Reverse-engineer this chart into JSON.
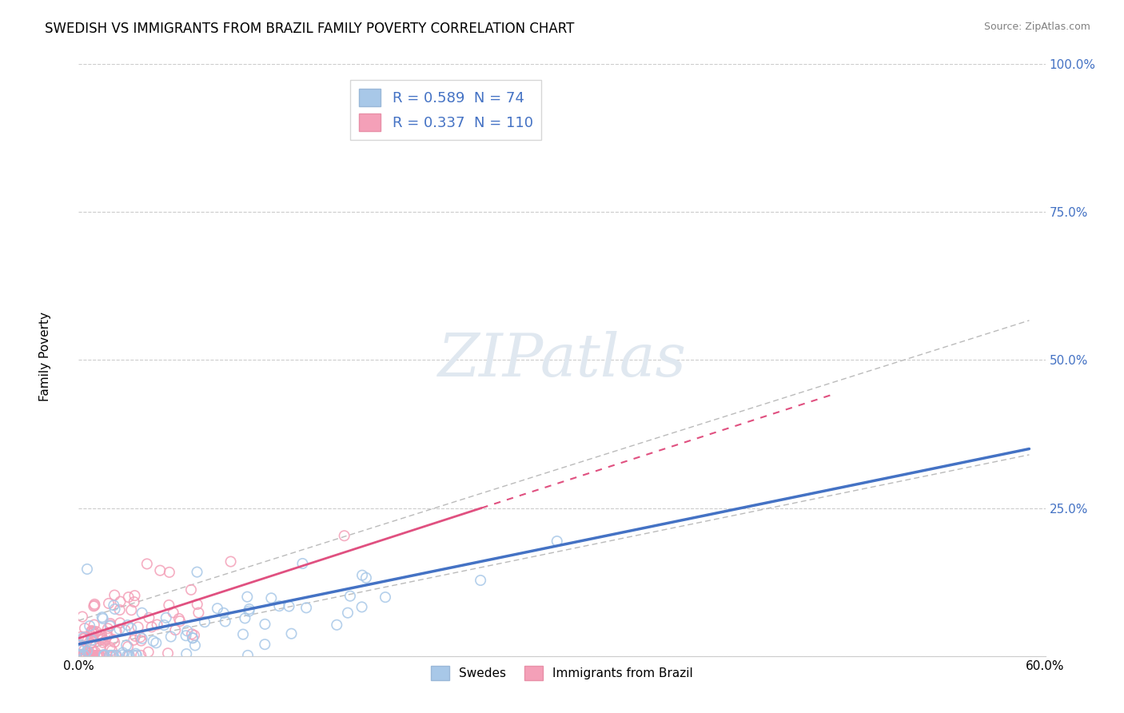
{
  "title": "SWEDISH VS IMMIGRANTS FROM BRAZIL FAMILY POVERTY CORRELATION CHART",
  "source": "Source: ZipAtlas.com",
  "ylabel": "Family Poverty",
  "xlim": [
    0.0,
    0.6
  ],
  "ylim": [
    0.0,
    1.0
  ],
  "yticks": [
    0.0,
    0.25,
    0.5,
    0.75,
    1.0
  ],
  "xticks": [
    0.0,
    0.1,
    0.2,
    0.3,
    0.4,
    0.5,
    0.6
  ],
  "r_swedish": 0.589,
  "n_swedish": 74,
  "r_brazil": 0.337,
  "n_brazil": 110,
  "color_swedish": "#a8c8e8",
  "color_brazil": "#f4a0b8",
  "line_color_swedish": "#4472c4",
  "line_color_brazil": "#e05080",
  "tick_color": "#4472c4",
  "background_color": "#ffffff",
  "grid_color": "#cccccc",
  "watermark": "ZIPatlas",
  "title_fontsize": 12,
  "axis_label_fontsize": 11,
  "tick_fontsize": 11,
  "legend_fontsize": 13
}
